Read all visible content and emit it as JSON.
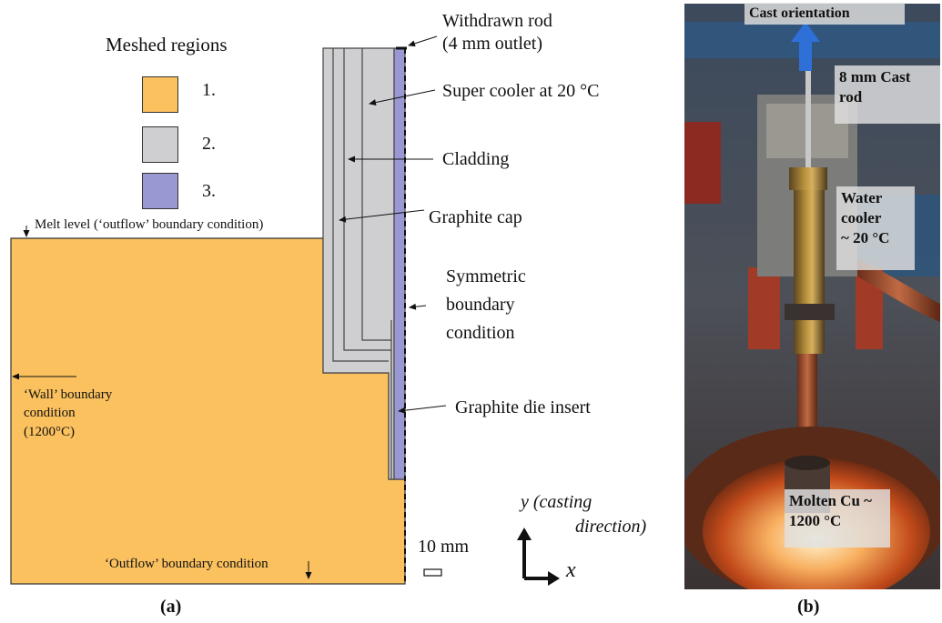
{
  "legend": {
    "title": "Meshed regions",
    "items": [
      {
        "label": "1.",
        "color": "#FBC15E"
      },
      {
        "label": "2.",
        "color": "#CFCFD2"
      },
      {
        "label": "3.",
        "color": "#9A98D2"
      }
    ]
  },
  "diagram_a": {
    "melt_level": "Melt level (‘outflow’ boundary condition)",
    "wall_bc": [
      "‘Wall’ boundary",
      "condition",
      "(1200°C)"
    ],
    "outflow_bc": "‘Outflow’ boundary condition",
    "withdrawn_rod": [
      "Withdrawn rod",
      "(4 mm outlet)"
    ],
    "super_cooler": "Super cooler at 20 °C",
    "cladding": "Cladding",
    "graphite_cap": "Graphite cap",
    "symmetric_bc": [
      "Symmetric",
      "boundary",
      "condition"
    ],
    "graphite_die_insert": "Graphite die insert",
    "scale": "10 mm",
    "axis_y": "y (casting",
    "axis_y2": "direction)",
    "axis_x": "x",
    "caption": "(a)"
  },
  "photo_b": {
    "cast_orientation": "Cast orientation",
    "cast_rod": [
      "8 mm Cast",
      "rod"
    ],
    "water_cooler": [
      "Water",
      "cooler",
      "~ 20 °C"
    ],
    "molten_cu": [
      "Molten Cu ~",
      "1200 °C"
    ],
    "caption": "(b)"
  },
  "colors": {
    "melt": "#FBC15E",
    "steel": "#CFCFD2",
    "graphite": "#9A98D2",
    "arrow_blue": "#2E6FD8"
  }
}
